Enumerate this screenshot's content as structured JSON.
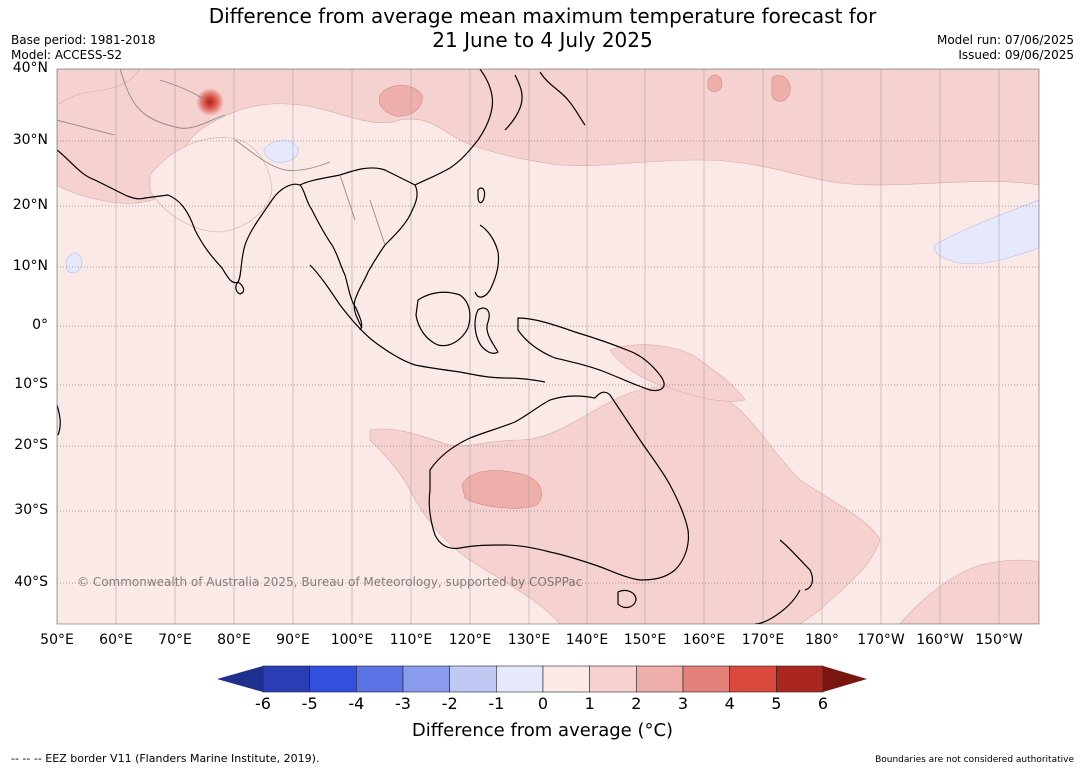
{
  "title": {
    "line1": "Difference from average mean maximum temperature forecast for",
    "line2": "21 June to 4 July 2025"
  },
  "meta": {
    "base_period": "Base period: 1981-2018",
    "model": "Model: ACCESS-S2",
    "model_run": "Model run: 07/06/2025",
    "issued": "Issued: 09/06/2025"
  },
  "map": {
    "copyright": "© Commonwealth of Australia 2025, Bureau of Meteorology, supported by COSPPac",
    "lat_labels": [
      "40°N",
      "30°N",
      "20°N",
      "10°N",
      "0°",
      "10°S",
      "20°S",
      "30°S",
      "40°S"
    ],
    "lon_labels": [
      "50°E",
      "60°E",
      "70°E",
      "80°E",
      "90°E",
      "100°E",
      "110°E",
      "120°E",
      "130°E",
      "140°E",
      "150°E",
      "160°E",
      "170°E",
      "180°",
      "170°W",
      "160°W",
      "150°W"
    ],
    "background_color": "#fbe9e7",
    "land_outline_color": "#000000",
    "border_color": "#8a8a8a"
  },
  "colorbar": {
    "title": "Difference from average (°C)",
    "ticks": [
      "-6",
      "-5",
      "-4",
      "-3",
      "-2",
      "-1",
      "0",
      "1",
      "2",
      "3",
      "4",
      "5",
      "6"
    ],
    "colors": [
      "#1f2f8c",
      "#2a3db5",
      "#3150e0",
      "#5c73e6",
      "#8a9aec",
      "#c0c8f4",
      "#e6e9fb",
      "#fbe9e7",
      "#f5d2cf",
      "#eeaea9",
      "#e5817b",
      "#d9493d",
      "#a9271f",
      "#7a1610"
    ]
  },
  "footer": {
    "eez": "--  --  -- EEZ border V11 (Flanders Marine Institute, 2019).",
    "disclaimer": "Boundaries are not considered authoritative"
  }
}
